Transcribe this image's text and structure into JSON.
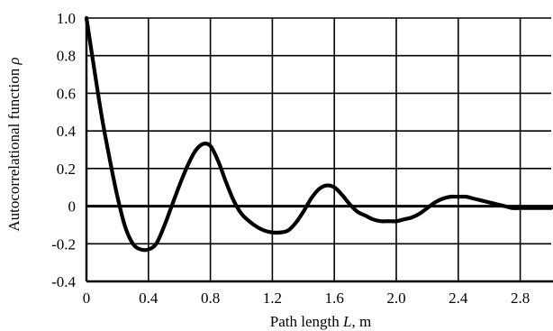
{
  "chart_data": {
    "type": "line",
    "title": "",
    "xlabel": {
      "prefix": "Path length ",
      "var": "L",
      "suffix": ", m"
    },
    "ylabel": {
      "prefix": "Autocorrelational function ",
      "var": "ρ"
    },
    "xlim": [
      0,
      3.0
    ],
    "ylim": [
      -0.4,
      1.0
    ],
    "grid": true,
    "x_ticks": [
      "0",
      "0.4",
      "0.8",
      "1.2",
      "1.6",
      "2.0",
      "2.4",
      "2.8"
    ],
    "y_ticks": [
      "1.0",
      "0.8",
      "0.6",
      "0.4",
      "0.2",
      "0",
      "-0.2",
      "-0.4"
    ],
    "series": [
      {
        "x": [
          0,
          0.05,
          0.1,
          0.15,
          0.2,
          0.25,
          0.3,
          0.35,
          0.4,
          0.45,
          0.5,
          0.55,
          0.6,
          0.65,
          0.7,
          0.75,
          0.8,
          0.85,
          0.9,
          0.95,
          1.0,
          1.05,
          1.1,
          1.15,
          1.2,
          1.25,
          1.3,
          1.35,
          1.4,
          1.45,
          1.5,
          1.55,
          1.6,
          1.65,
          1.7,
          1.75,
          1.8,
          1.85,
          1.9,
          1.95,
          2.0,
          2.05,
          2.1,
          2.15,
          2.2,
          2.25,
          2.3,
          2.35,
          2.4,
          2.45,
          2.5,
          2.55,
          2.6,
          2.65,
          2.7,
          2.75,
          2.8,
          2.85,
          2.9,
          2.95,
          3.0
        ],
        "values": [
          1.0,
          0.73,
          0.47,
          0.25,
          0.05,
          -0.11,
          -0.2,
          -0.23,
          -0.23,
          -0.2,
          -0.11,
          0.0,
          0.11,
          0.21,
          0.29,
          0.33,
          0.32,
          0.24,
          0.13,
          0.03,
          -0.04,
          -0.08,
          -0.11,
          -0.13,
          -0.14,
          -0.14,
          -0.13,
          -0.09,
          -0.03,
          0.04,
          0.09,
          0.11,
          0.1,
          0.06,
          0.01,
          -0.03,
          -0.05,
          -0.07,
          -0.08,
          -0.08,
          -0.08,
          -0.07,
          -0.06,
          -0.04,
          -0.01,
          0.02,
          0.04,
          0.05,
          0.05,
          0.05,
          0.04,
          0.03,
          0.02,
          0.01,
          0.0,
          -0.01,
          -0.01,
          -0.01,
          -0.01,
          -0.01,
          -0.01
        ]
      }
    ]
  }
}
